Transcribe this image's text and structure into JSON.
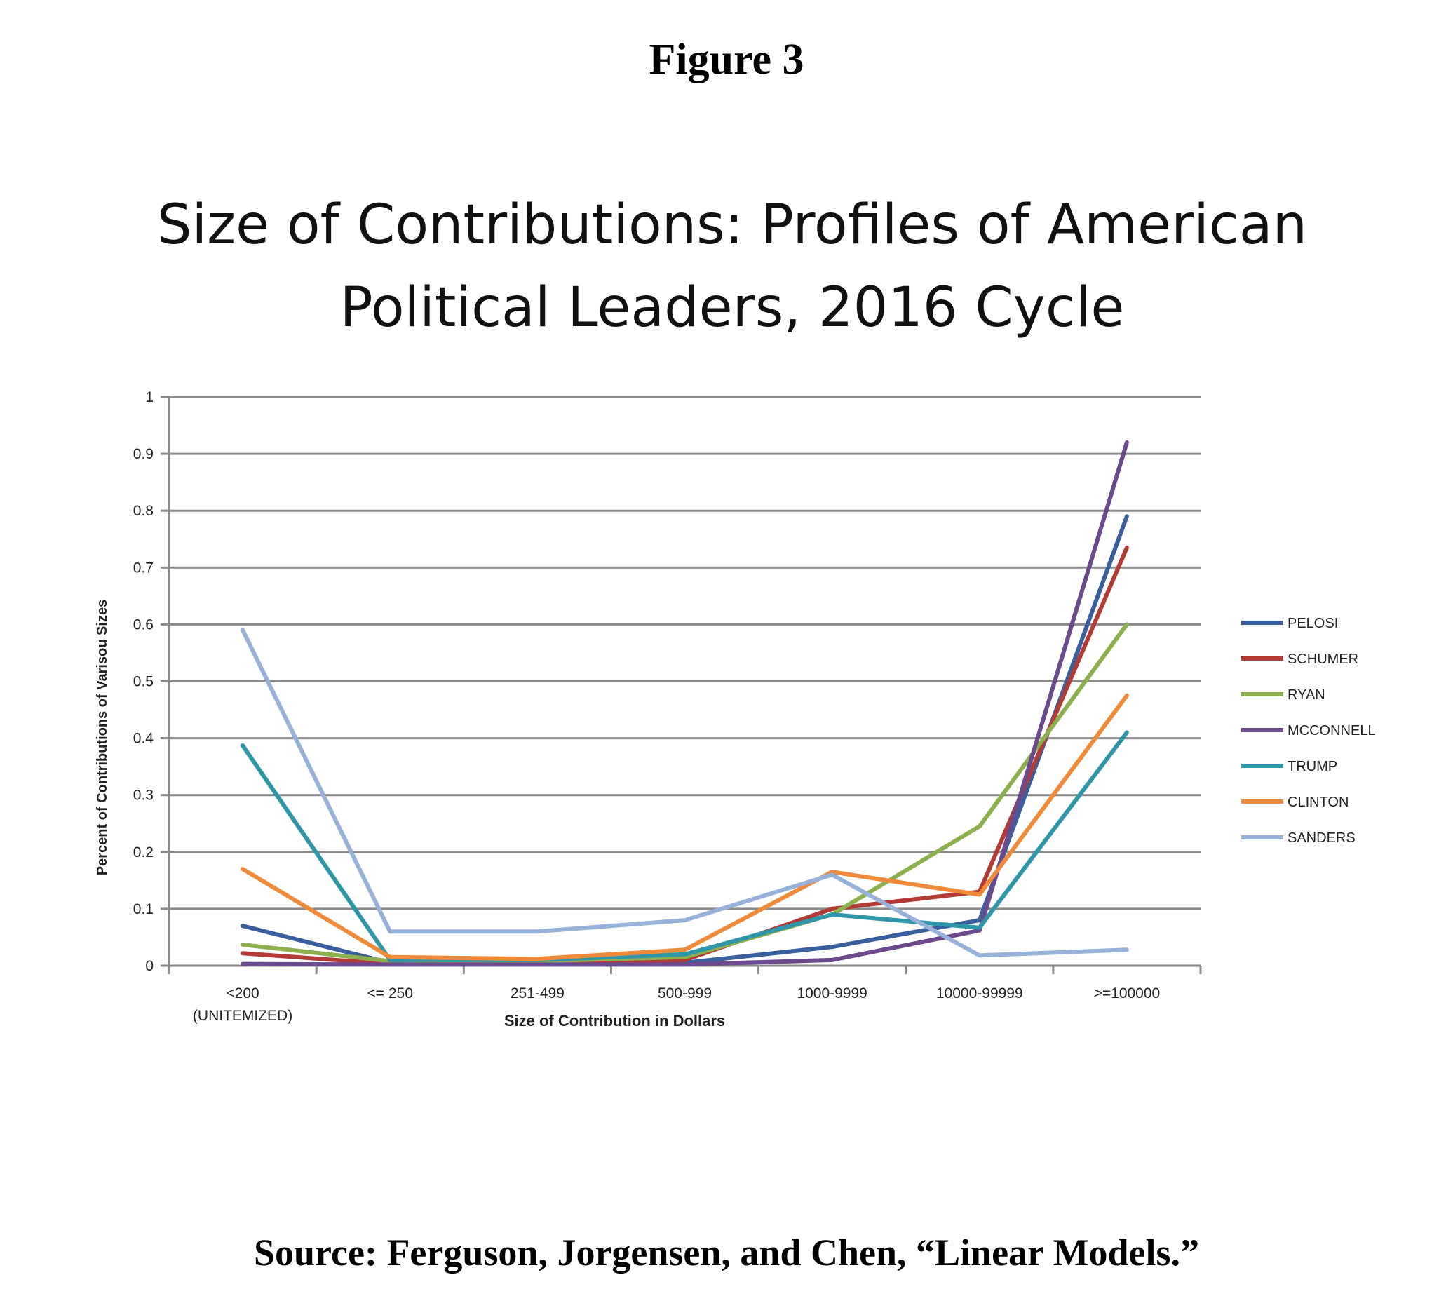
{
  "figure_label": "Figure 3",
  "title_lines": [
    "Size of Contributions: Profiles of American",
    "Political Leaders, 2016 Cycle"
  ],
  "source": "Source: Ferguson, Jorgensen, and Chen, “Linear Models.”",
  "chart_data": {
    "type": "line",
    "title": "Size of Contributions: Profiles of American Political Leaders, 2016 Cycle",
    "xlabel": "Size of Contribution in Dollars",
    "ylabel": "Percent of Contributions of Varisou Sizes",
    "categories": [
      [
        "<200",
        "(UNITEMIZED)"
      ],
      [
        "<= 250"
      ],
      [
        "251-499"
      ],
      [
        "500-999"
      ],
      [
        "1000-9999"
      ],
      [
        "10000-99999"
      ],
      [
        ">=100000"
      ]
    ],
    "ylim": [
      0,
      1
    ],
    "yticks": [
      "0",
      "0.1",
      "0.2",
      "0.3",
      "0.4",
      "0.5",
      "0.6",
      "0.7",
      "0.8",
      "0.9",
      "1"
    ],
    "grid": true,
    "legend_position": "right",
    "series": [
      {
        "name": "PELOSI",
        "color": "#3a5f9e",
        "values": [
          0.07,
          0.005,
          0.005,
          0.005,
          0.033,
          0.08,
          0.79
        ]
      },
      {
        "name": "SCHUMER",
        "color": "#b23b36",
        "values": [
          0.022,
          0.003,
          0.003,
          0.01,
          0.1,
          0.13,
          0.735
        ]
      },
      {
        "name": "RYAN",
        "color": "#8cb04e",
        "values": [
          0.037,
          0.008,
          0.008,
          0.015,
          0.09,
          0.245,
          0.6
        ]
      },
      {
        "name": "MCCONNELL",
        "color": "#6b4a8e",
        "values": [
          0.003,
          0.002,
          0.002,
          0.002,
          0.01,
          0.062,
          0.92
        ]
      },
      {
        "name": "TRUMP",
        "color": "#2f96a9",
        "values": [
          0.387,
          0.01,
          0.01,
          0.02,
          0.09,
          0.067,
          0.41
        ]
      },
      {
        "name": "CLINTON",
        "color": "#ef8a3a",
        "values": [
          0.17,
          0.015,
          0.012,
          0.028,
          0.165,
          0.125,
          0.475
        ]
      },
      {
        "name": "SANDERS",
        "color": "#97b1d9",
        "values": [
          0.59,
          0.06,
          0.06,
          0.08,
          0.16,
          0.018,
          0.028
        ]
      }
    ]
  }
}
